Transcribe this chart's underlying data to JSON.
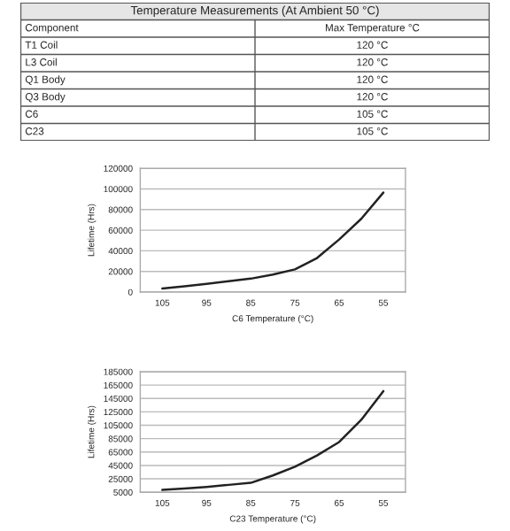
{
  "chart_data": [
    {
      "type": "other",
      "title": "Temperature Measurements (At Ambient 50 °C)",
      "annotations": [
        "Component",
        "Max Temperature °C",
        "T1 Coil",
        "120 °C",
        "L3 Coil",
        "120 °C",
        "Q1 Body",
        "120 °C",
        "Q3 Body",
        "120 °C",
        "C6",
        "105 °C",
        "C23",
        "105 °C"
      ]
    },
    {
      "type": "line",
      "xlabel": "C6 Temperature (°C)",
      "ylabel": "Lifetime (Hrs)",
      "x": [
        105,
        100,
        95,
        90,
        85,
        80,
        75,
        70,
        65,
        60,
        55
      ],
      "series": [
        {
          "color": "#222222",
          "values": [
            3400,
            5500,
            8000,
            10500,
            13000,
            17000,
            22000,
            33000,
            51000,
            71000,
            96500
          ]
        }
      ],
      "xlim": [
        110,
        50
      ],
      "xticks": [
        105,
        95,
        85,
        75,
        65,
        55
      ],
      "ylim": [
        0,
        120000
      ],
      "yticks": [
        0,
        20000,
        40000,
        60000,
        80000,
        100000,
        120000
      ],
      "grid": "y",
      "marker": "none",
      "line_style": "solid"
    },
    {
      "type": "line",
      "xlabel": "C23 Temperature (°C)",
      "ylabel": "Lifetime (Hrs)",
      "x": [
        105,
        100,
        95,
        90,
        85,
        80,
        75,
        70,
        65,
        60,
        55
      ],
      "series": [
        {
          "color": "#222222",
          "values": [
            8500,
            10500,
            13000,
            16000,
            19000,
            30000,
            43000,
            60000,
            80000,
            113000,
            156000
          ]
        }
      ],
      "xlim": [
        110,
        50
      ],
      "xticks": [
        105,
        95,
        85,
        75,
        65,
        55
      ],
      "ylim": [
        5000,
        185000
      ],
      "yticks": [
        5000,
        25000,
        45000,
        65000,
        85000,
        105000,
        125000,
        145000,
        165000,
        185000
      ],
      "grid": "y",
      "marker": "none",
      "line_style": "solid"
    }
  ]
}
